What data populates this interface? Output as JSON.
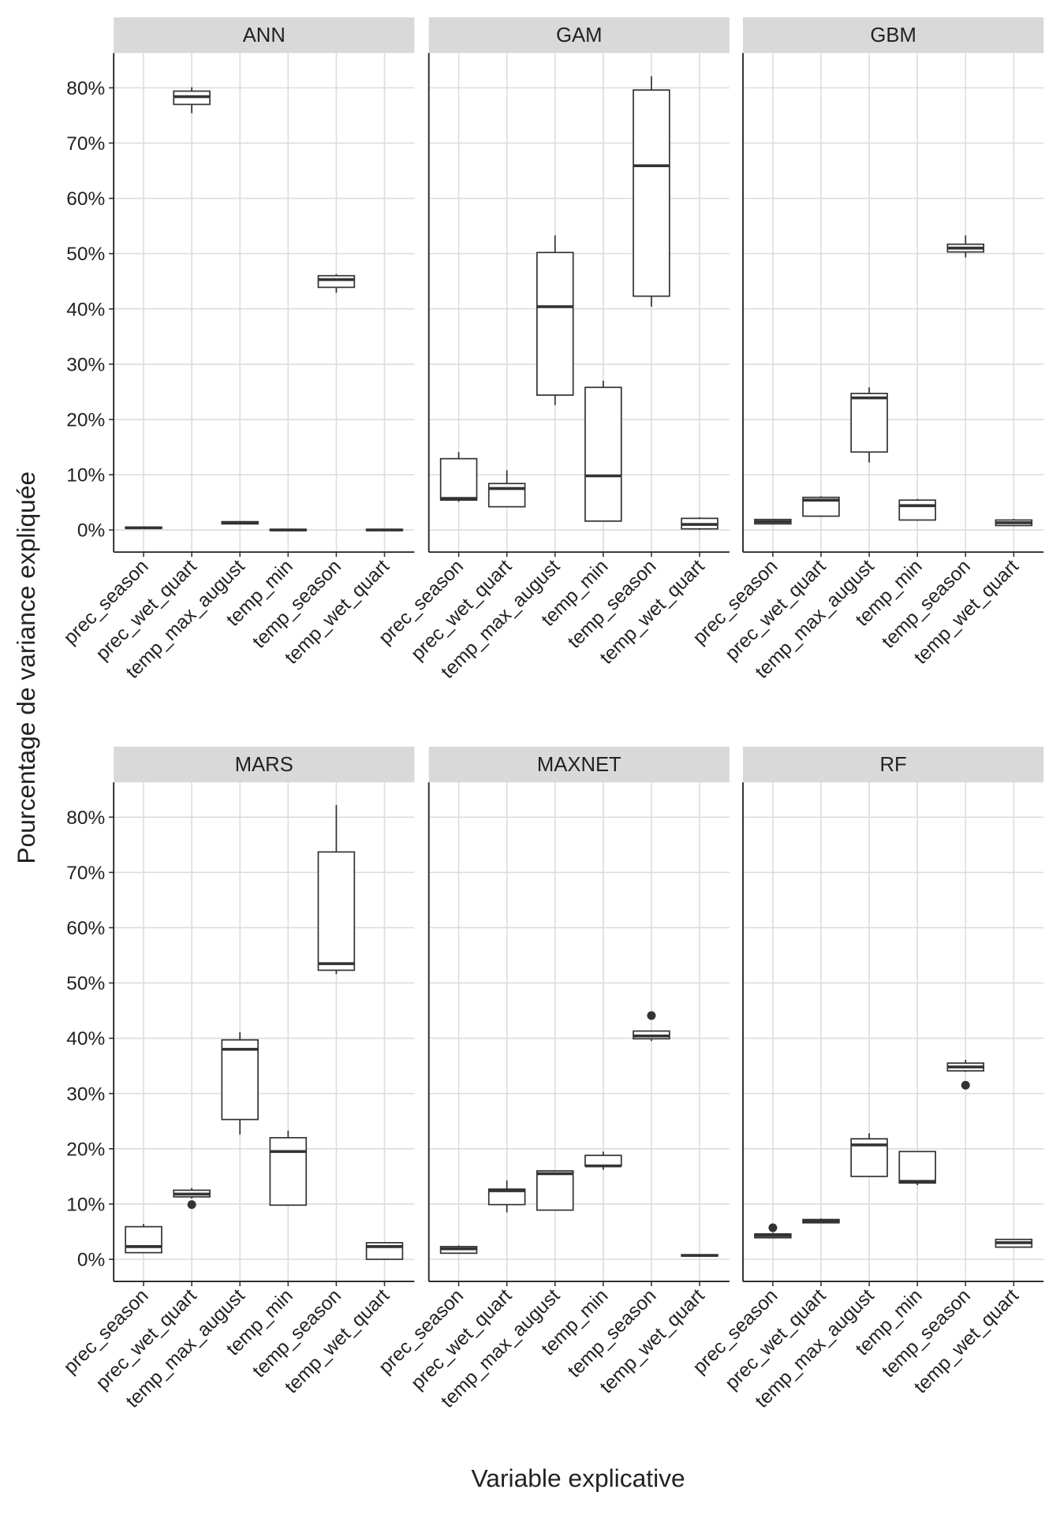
{
  "chart_data": {
    "type": "box",
    "ylabel": "Pourcentage de variance expliquée",
    "xlabel": "Variable explicative",
    "categories": [
      "prec_season",
      "prec_wet_quart",
      "temp_max_august",
      "temp_min",
      "temp_season",
      "temp_wet_quart"
    ],
    "ylim": [
      -4,
      86.3
    ],
    "yticks": [
      {
        "value": 0,
        "label": "0%"
      },
      {
        "value": 10,
        "label": "10%"
      },
      {
        "value": 20,
        "label": "20%"
      },
      {
        "value": 30,
        "label": "30%"
      },
      {
        "value": 40,
        "label": "40%"
      },
      {
        "value": 50,
        "label": "50%"
      },
      {
        "value": 60,
        "label": "60%"
      },
      {
        "value": 70,
        "label": "70%"
      },
      {
        "value": 80,
        "label": "80%"
      }
    ],
    "grid": true,
    "color": "#333333",
    "panels": [
      {
        "title": "ANN",
        "boxes": [
          {
            "low": 0.2,
            "q1": 0.3,
            "median": 0.4,
            "q3": 0.5,
            "high": 0.6
          },
          {
            "low": 75.4,
            "q1": 77.0,
            "median": 78.4,
            "q3": 79.4,
            "high": 80.1
          },
          {
            "low": 1.0,
            "q1": 1.1,
            "median": 1.3,
            "q3": 1.5,
            "high": 1.6
          },
          {
            "low": -0.1,
            "q1": -0.1,
            "median": 0.0,
            "q3": 0.1,
            "high": 0.1
          },
          {
            "low": 42.9,
            "q1": 43.9,
            "median": 45.3,
            "q3": 46.0,
            "high": 46.3
          },
          {
            "low": -0.1,
            "q1": -0.1,
            "median": 0.0,
            "q3": 0.1,
            "high": 0.1
          }
        ]
      },
      {
        "title": "GAM",
        "boxes": [
          {
            "low": 5.1,
            "q1": 5.4,
            "median": 5.7,
            "q3": 12.9,
            "high": 14.1
          },
          {
            "low": 4.2,
            "q1": 4.2,
            "median": 7.5,
            "q3": 8.4,
            "high": 10.8
          },
          {
            "low": 22.6,
            "q1": 24.4,
            "median": 40.4,
            "q3": 50.2,
            "high": 53.3
          },
          {
            "low": 1.6,
            "q1": 1.6,
            "median": 9.8,
            "q3": 25.8,
            "high": 27.0
          },
          {
            "low": 40.4,
            "q1": 42.3,
            "median": 65.9,
            "q3": 79.6,
            "high": 82.1
          },
          {
            "low": 0.0,
            "q1": 0.2,
            "median": 1.0,
            "q3": 2.1,
            "high": 2.3
          }
        ]
      },
      {
        "title": "GBM",
        "boxes": [
          {
            "low": 1.0,
            "q1": 1.1,
            "median": 1.5,
            "q3": 1.9,
            "high": 2.0
          },
          {
            "low": 2.4,
            "q1": 2.5,
            "median": 5.4,
            "q3": 5.9,
            "high": 6.1
          },
          {
            "low": 12.2,
            "q1": 14.1,
            "median": 23.9,
            "q3": 24.7,
            "high": 25.8
          },
          {
            "low": 1.7,
            "q1": 1.8,
            "median": 4.4,
            "q3": 5.4,
            "high": 5.6
          },
          {
            "low": 49.3,
            "q1": 50.3,
            "median": 51.0,
            "q3": 51.7,
            "high": 53.3
          },
          {
            "low": 0.7,
            "q1": 0.8,
            "median": 1.3,
            "q3": 1.8,
            "high": 2.0
          }
        ]
      },
      {
        "title": "MARS",
        "boxes": [
          {
            "low": 1.2,
            "q1": 1.2,
            "median": 2.3,
            "q3": 5.9,
            "high": 6.4
          },
          {
            "low": 11.0,
            "q1": 11.3,
            "median": 11.8,
            "q3": 12.5,
            "high": 12.9,
            "outliers": [
              9.9
            ]
          },
          {
            "low": 22.6,
            "q1": 25.3,
            "median": 38.0,
            "q3": 39.7,
            "high": 41.1
          },
          {
            "low": 9.8,
            "q1": 9.8,
            "median": 19.5,
            "q3": 22.0,
            "high": 23.3
          },
          {
            "low": 51.6,
            "q1": 52.3,
            "median": 53.5,
            "q3": 73.7,
            "high": 82.2
          },
          {
            "low": 0.0,
            "q1": 0.0,
            "median": 2.3,
            "q3": 3.0,
            "high": 3.1
          }
        ]
      },
      {
        "title": "MAXNET",
        "boxes": [
          {
            "low": 1.0,
            "q1": 1.1,
            "median": 1.9,
            "q3": 2.3,
            "high": 2.5
          },
          {
            "low": 8.5,
            "q1": 9.9,
            "median": 12.4,
            "q3": 12.7,
            "high": 14.3
          },
          {
            "low": 8.9,
            "q1": 8.9,
            "median": 15.5,
            "q3": 16.0,
            "high": 16.0
          },
          {
            "low": 16.2,
            "q1": 16.9,
            "median": 16.9,
            "q3": 18.8,
            "high": 19.5
          },
          {
            "low": 39.5,
            "q1": 39.9,
            "median": 40.4,
            "q3": 41.3,
            "high": 41.3,
            "outliers": [
              44.1
            ]
          },
          {
            "low": 0.5,
            "q1": 0.6,
            "median": 0.7,
            "q3": 0.8,
            "high": 0.9
          }
        ]
      },
      {
        "title": "RF",
        "boxes": [
          {
            "low": 3.8,
            "q1": 3.9,
            "median": 4.3,
            "q3": 4.6,
            "high": 4.8,
            "outliers": [
              5.7
            ]
          },
          {
            "low": 6.5,
            "q1": 6.6,
            "median": 6.9,
            "q3": 7.2,
            "high": 7.4
          },
          {
            "low": 15.0,
            "q1": 15.0,
            "median": 20.7,
            "q3": 21.8,
            "high": 22.8
          },
          {
            "low": 13.4,
            "q1": 13.8,
            "median": 14.1,
            "q3": 19.5,
            "high": 19.5
          },
          {
            "low": 33.9,
            "q1": 34.1,
            "median": 34.8,
            "q3": 35.5,
            "high": 36.1,
            "outliers": [
              31.5
            ]
          },
          {
            "low": 2.1,
            "q1": 2.2,
            "median": 3.0,
            "q3": 3.6,
            "high": 3.7
          }
        ]
      }
    ]
  }
}
